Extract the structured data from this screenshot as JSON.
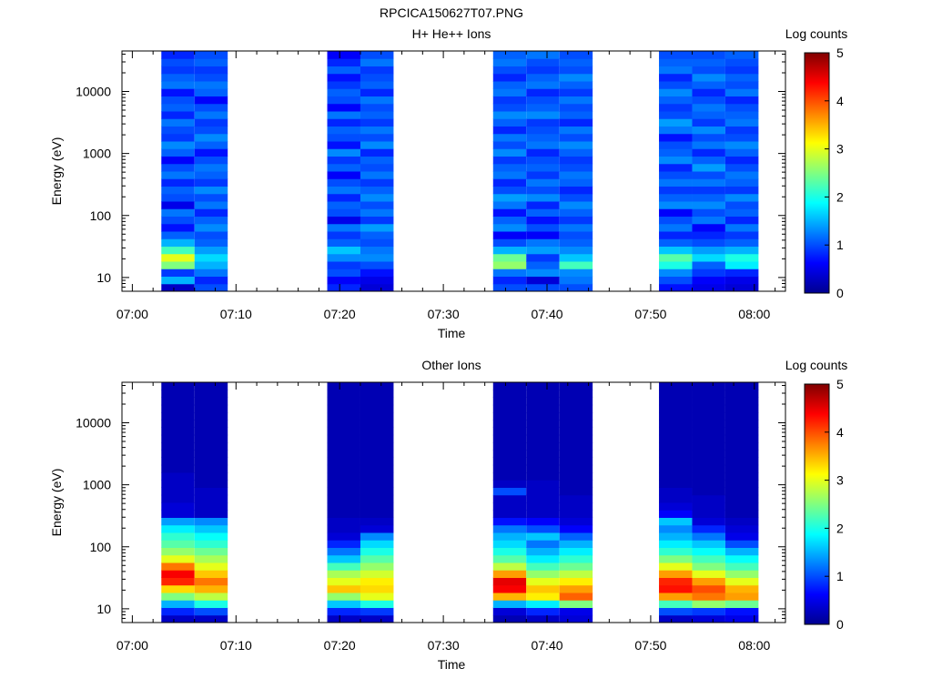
{
  "figure": {
    "title": "RPCICA150627T07.PNG"
  },
  "colorscale": {
    "stops": [
      "#00008f",
      "#0000ff",
      "#0080ff",
      "#00ffff",
      "#80ff80",
      "#ffff00",
      "#ff8000",
      "#ff0000",
      "#800000"
    ]
  },
  "chart_data": [
    {
      "type": "heatmap",
      "title": "H+ He++ Ions",
      "xlabel": "Time",
      "ylabel": "Energy (eV)",
      "y_scale": "log",
      "ylim": [
        6,
        45000
      ],
      "xlim": [
        "06:59",
        "08:03"
      ],
      "x_ticks": [
        "07:00",
        "07:10",
        "07:20",
        "07:30",
        "07:40",
        "07:50",
        "08:00"
      ],
      "y_ticks": [
        {
          "value": 10,
          "label": "10"
        },
        {
          "value": 100,
          "label": "100"
        },
        {
          "value": 1000,
          "label": "1000"
        },
        {
          "value": 10000,
          "label": "10000"
        }
      ],
      "colorbar": {
        "label": "Log counts",
        "range": [
          0,
          5
        ],
        "ticks": [
          "0",
          "1",
          "2",
          "3",
          "4",
          "5"
        ]
      },
      "energy_range_ev": [
        6,
        45000
      ],
      "time_blocks": [
        {
          "start": "07:02.8",
          "end": "07:06.0",
          "band_levels": [
            0.3,
            1.5,
            0.9,
            2.5,
            3.0,
            2.2,
            1.5,
            1.1,
            0.7,
            1.0,
            1.2,
            0.5,
            1.0,
            1.1,
            0.8,
            1.2,
            1.0,
            0.6,
            1.1,
            1.3,
            0.9,
            1.0,
            1.2,
            0.8,
            1.1,
            1.0,
            0.7,
            1.2,
            1.1,
            0.9,
            1.0,
            0.8
          ]
        },
        {
          "start": "07:06.0",
          "end": "07:09.2",
          "band_levels": [
            1.0,
            0.8,
            1.2,
            1.5,
            1.7,
            1.4,
            1.1,
            1.0,
            1.3,
            1.1,
            0.8,
            1.2,
            1.0,
            1.3,
            0.9,
            1.1,
            1.2,
            1.0,
            0.7,
            1.1,
            1.3,
            1.0,
            0.9,
            1.2,
            1.0,
            0.6,
            1.1,
            1.2,
            1.0,
            0.9,
            1.1,
            1.0
          ]
        },
        {
          "start": "07:18.8",
          "end": "07:22.0",
          "band_levels": [
            0.8,
            0.6,
            1.0,
            0.9,
            1.3,
            1.6,
            1.1,
            0.9,
            1.2,
            0.5,
            1.0,
            1.1,
            0.8,
            1.2,
            1.0,
            0.6,
            1.1,
            0.9,
            1.3,
            0.7,
            1.0,
            1.1,
            0.8,
            1.2,
            0.6,
            1.0,
            1.1,
            0.9,
            0.7,
            1.1,
            0.8,
            0.6
          ]
        },
        {
          "start": "07:22.0",
          "end": "07:25.2",
          "band_levels": [
            0.4,
            0.5,
            0.7,
            1.0,
            1.3,
            1.2,
            1.0,
            1.1,
            1.4,
            0.9,
            1.2,
            1.0,
            1.3,
            1.1,
            0.9,
            1.2,
            1.0,
            1.1,
            0.8,
            1.3,
            1.0,
            1.2,
            0.9,
            1.1,
            1.0,
            1.2,
            0.8,
            1.1,
            1.0,
            0.9,
            1.2,
            1.0
          ]
        },
        {
          "start": "07:34.8",
          "end": "07:38.0",
          "band_levels": [
            1.0,
            0.8,
            1.2,
            2.6,
            2.4,
            1.5,
            1.0,
            0.6,
            1.3,
            1.1,
            0.7,
            1.2,
            1.4,
            1.0,
            0.8,
            1.2,
            1.1,
            0.9,
            1.3,
            1.0,
            1.2,
            0.8,
            1.1,
            1.3,
            1.0,
            0.9,
            1.2,
            1.1,
            0.8,
            1.0,
            1.2,
            1.1
          ]
        },
        {
          "start": "07:38.0",
          "end": "07:41.2",
          "band_levels": [
            1.0,
            0.4,
            1.3,
            1.1,
            0.9,
            1.4,
            1.2,
            0.6,
            1.0,
            0.7,
            1.1,
            0.8,
            1.3,
            1.0,
            1.2,
            0.9,
            1.1,
            1.0,
            0.8,
            1.2,
            1.1,
            1.0,
            0.9,
            1.3,
            1.1,
            1.0,
            0.8,
            1.2,
            1.1,
            0.9,
            1.0,
            1.2
          ]
        },
        {
          "start": "07:41.2",
          "end": "07:44.4",
          "band_levels": [
            1.0,
            1.2,
            1.3,
            2.2,
            1.6,
            1.3,
            1.1,
            1.0,
            1.2,
            0.9,
            1.1,
            1.3,
            1.0,
            0.8,
            1.1,
            1.2,
            1.0,
            0.9,
            1.1,
            1.3,
            1.0,
            1.2,
            0.8,
            1.1,
            1.0,
            1.2,
            0.9,
            1.1,
            1.3,
            1.0,
            1.1,
            1.0
          ]
        },
        {
          "start": "07:50.8",
          "end": "07:54.0",
          "band_levels": [
            0.7,
            1.0,
            1.3,
            2.0,
            2.3,
            1.6,
            1.1,
            0.8,
            1.2,
            1.0,
            0.6,
            1.3,
            1.1,
            0.9,
            1.2,
            1.0,
            0.8,
            1.3,
            1.1,
            1.0,
            0.7,
            1.2,
            1.4,
            1.0,
            0.9,
            1.1,
            1.3,
            1.0,
            0.8,
            1.2,
            1.1,
            1.0
          ]
        },
        {
          "start": "07:54.0",
          "end": "07:57.2",
          "band_levels": [
            0.5,
            0.6,
            0.9,
            1.1,
            1.7,
            1.4,
            1.0,
            0.8,
            0.6,
            1.2,
            1.0,
            1.3,
            1.1,
            0.9,
            1.2,
            1.0,
            1.4,
            1.1,
            0.8,
            1.2,
            1.0,
            1.3,
            0.9,
            1.1,
            1.2,
            1.0,
            0.8,
            1.1,
            1.3,
            1.0,
            1.1,
            1.0
          ]
        },
        {
          "start": "07:57.2",
          "end": "08:00.4",
          "band_levels": [
            0.4,
            0.5,
            0.8,
            1.8,
            2.0,
            1.5,
            1.1,
            0.9,
            1.2,
            0.8,
            1.1,
            1.0,
            1.3,
            0.9,
            1.1,
            1.2,
            1.0,
            0.8,
            1.1,
            1.3,
            1.0,
            0.9,
            1.2,
            1.1,
            1.0,
            0.8,
            1.2,
            1.0,
            1.1,
            0.9,
            1.0,
            1.1
          ]
        }
      ]
    },
    {
      "type": "heatmap",
      "title": "Other Ions",
      "xlabel": "Time",
      "ylabel": "Energy (eV)",
      "y_scale": "log",
      "ylim": [
        6,
        45000
      ],
      "xlim": [
        "06:59",
        "08:03"
      ],
      "x_ticks": [
        "07:00",
        "07:10",
        "07:20",
        "07:30",
        "07:40",
        "07:50",
        "08:00"
      ],
      "y_ticks": [
        {
          "value": 10,
          "label": "10"
        },
        {
          "value": 100,
          "label": "100"
        },
        {
          "value": 1000,
          "label": "1000"
        },
        {
          "value": 10000,
          "label": "10000"
        }
      ],
      "colorbar": {
        "label": "Log counts",
        "range": [
          0,
          5
        ],
        "ticks": [
          "0",
          "1",
          "2",
          "3",
          "4",
          "5"
        ]
      },
      "energy_range_ev": [
        6,
        45000
      ],
      "time_blocks": [
        {
          "start": "07:02.8",
          "end": "07:06.0",
          "band_levels": [
            0.3,
            0.8,
            1.5,
            2.5,
            3.3,
            4.2,
            4.4,
            3.8,
            3.0,
            2.6,
            2.3,
            2.1,
            1.8,
            1.4,
            0.4,
            0.4,
            0.3,
            0.3,
            0.3,
            0.3,
            0.2,
            0.2,
            0.2,
            0.2,
            0.2,
            0.2,
            0.2,
            0.2,
            0.2,
            0.2,
            0.2,
            0.2
          ]
        },
        {
          "start": "07:06.0",
          "end": "07:09.2",
          "band_levels": [
            0.3,
            1.0,
            2.0,
            2.8,
            3.5,
            3.8,
            3.4,
            3.0,
            2.7,
            2.4,
            2.1,
            1.9,
            1.6,
            1.3,
            0.3,
            0.3,
            0.3,
            0.3,
            0.2,
            0.2,
            0.2,
            0.2,
            0.2,
            0.2,
            0.2,
            0.2,
            0.2,
            0.2,
            0.2,
            0.2,
            0.2,
            0.2
          ]
        },
        {
          "start": "07:18.8",
          "end": "07:22.0",
          "band_levels": [
            0.3,
            0.8,
            1.6,
            2.6,
            3.4,
            3.0,
            2.7,
            2.2,
            1.6,
            1.2,
            0.8,
            0.4,
            0.3,
            0.3,
            0.2,
            0.2,
            0.2,
            0.2,
            0.2,
            0.2,
            0.2,
            0.2,
            0.2,
            0.2,
            0.2,
            0.2,
            0.2,
            0.2,
            0.2,
            0.2,
            0.2,
            0.2
          ]
        },
        {
          "start": "07:22.0",
          "end": "07:25.2",
          "band_levels": [
            0.3,
            0.9,
            2.0,
            3.0,
            3.3,
            3.2,
            2.9,
            2.6,
            2.3,
            2.0,
            1.7,
            1.3,
            0.4,
            0.3,
            0.2,
            0.2,
            0.2,
            0.2,
            0.2,
            0.2,
            0.2,
            0.2,
            0.2,
            0.2,
            0.2,
            0.2,
            0.2,
            0.2,
            0.2,
            0.2,
            0.2,
            0.2
          ]
        },
        {
          "start": "07:34.8",
          "end": "07:38.0",
          "band_levels": [
            0.2,
            0.4,
            1.5,
            3.5,
            4.4,
            4.5,
            3.6,
            2.8,
            2.3,
            2.0,
            1.7,
            1.5,
            1.2,
            0.7,
            0.3,
            0.3,
            0.3,
            1.0,
            0.3,
            0.2,
            0.2,
            0.2,
            0.2,
            0.2,
            0.2,
            0.2,
            0.2,
            0.2,
            0.2,
            0.2,
            0.2,
            0.2
          ]
        },
        {
          "start": "07:38.0",
          "end": "07:41.2",
          "band_levels": [
            0.3,
            0.8,
            1.8,
            3.2,
            3.4,
            3.0,
            2.6,
            2.2,
            1.8,
            1.5,
            1.2,
            1.6,
            1.0,
            0.6,
            0.3,
            0.3,
            0.3,
            0.3,
            0.3,
            0.2,
            0.2,
            0.2,
            0.2,
            0.2,
            0.2,
            0.2,
            0.2,
            0.2,
            0.2,
            0.2,
            0.2,
            0.2
          ]
        },
        {
          "start": "07:41.2",
          "end": "07:44.4",
          "band_levels": [
            0.4,
            0.5,
            2.5,
            3.9,
            3.6,
            3.2,
            2.8,
            2.4,
            2.1,
            1.8,
            1.5,
            1.1,
            0.6,
            0.4,
            0.3,
            0.3,
            0.3,
            0.2,
            0.2,
            0.2,
            0.2,
            0.2,
            0.2,
            0.2,
            0.2,
            0.2,
            0.2,
            0.2,
            0.2,
            0.2,
            0.2,
            0.2
          ]
        },
        {
          "start": "07:50.8",
          "end": "07:54.0",
          "band_levels": [
            0.3,
            1.0,
            2.2,
            3.6,
            4.3,
            4.2,
            3.6,
            3.0,
            2.5,
            2.1,
            1.8,
            1.5,
            1.3,
            1.6,
            0.6,
            0.4,
            0.3,
            0.3,
            0.2,
            0.2,
            0.2,
            0.2,
            0.2,
            0.2,
            0.2,
            0.2,
            0.2,
            0.2,
            0.2,
            0.2,
            0.2,
            0.2
          ]
        },
        {
          "start": "07:54.0",
          "end": "07:57.2",
          "band_levels": [
            0.4,
            0.9,
            2.6,
            3.8,
            4.0,
            3.6,
            3.0,
            2.5,
            2.2,
            1.9,
            1.6,
            1.2,
            0.8,
            0.4,
            0.3,
            0.3,
            0.3,
            0.2,
            0.2,
            0.2,
            0.2,
            0.2,
            0.2,
            0.2,
            0.2,
            0.2,
            0.2,
            0.2,
            0.2,
            0.2,
            0.2,
            0.2
          ]
        },
        {
          "start": "07:57.2",
          "end": "08:00.4",
          "band_levels": [
            0.5,
            0.7,
            2.4,
            3.6,
            3.5,
            3.0,
            2.6,
            2.2,
            1.9,
            1.5,
            1.0,
            0.5,
            0.4,
            0.3,
            0.2,
            0.2,
            0.2,
            0.2,
            0.2,
            0.2,
            0.2,
            0.2,
            0.2,
            0.2,
            0.2,
            0.2,
            0.2,
            0.2,
            0.2,
            0.2,
            0.2,
            0.2
          ]
        }
      ]
    }
  ]
}
